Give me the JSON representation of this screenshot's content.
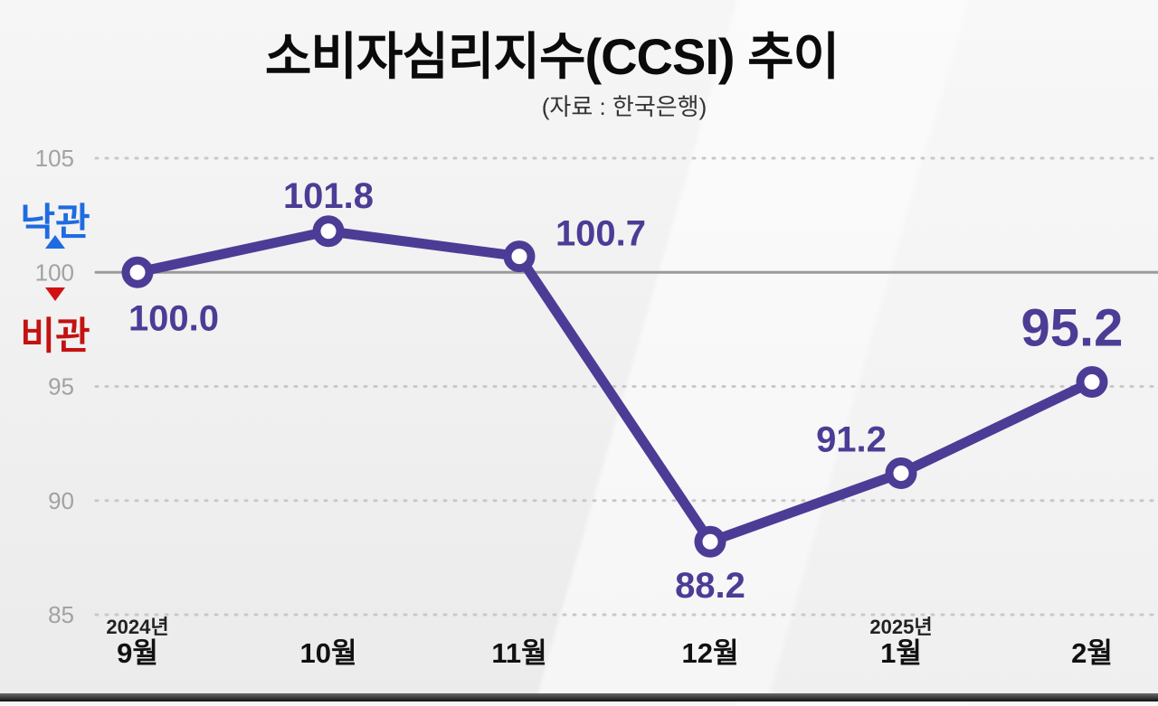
{
  "header": {
    "title": "소비자심리지수(CCSI) 추이",
    "subtitle": "(자료 : 한국은행)"
  },
  "axis_annotations": {
    "optimism_label": "낙관",
    "pessimism_label": "비관",
    "optimism_color": "#1f6be0",
    "pessimism_color": "#c41111"
  },
  "chart_data": {
    "type": "line",
    "title": "소비자심리지수(CCSI) 추이",
    "source": "(자료 : 한국은행)",
    "categories": [
      "9월",
      "10월",
      "11월",
      "12월",
      "1월",
      "2월"
    ],
    "category_year_prefixes": [
      "2024년",
      "",
      "",
      "",
      "2025년",
      ""
    ],
    "values": [
      100.0,
      101.8,
      100.7,
      88.2,
      91.2,
      95.2
    ],
    "value_labels": [
      "100.0",
      "101.8",
      "100.7",
      "88.2",
      "91.2",
      "95.2"
    ],
    "ylim": [
      85,
      105
    ],
    "yticks": [
      105,
      100,
      95,
      90,
      85
    ],
    "reference_line": 100,
    "grid": true,
    "legend": "none",
    "line_color": "#4d3c96",
    "marker_fill": "#ffffff",
    "label_color": "#4d3c96",
    "grid_color": "#c8c8c8",
    "reference_line_color": "#9b9b9b",
    "tick_label_color": "#a2a2a2",
    "x_label_color": "#111111"
  }
}
